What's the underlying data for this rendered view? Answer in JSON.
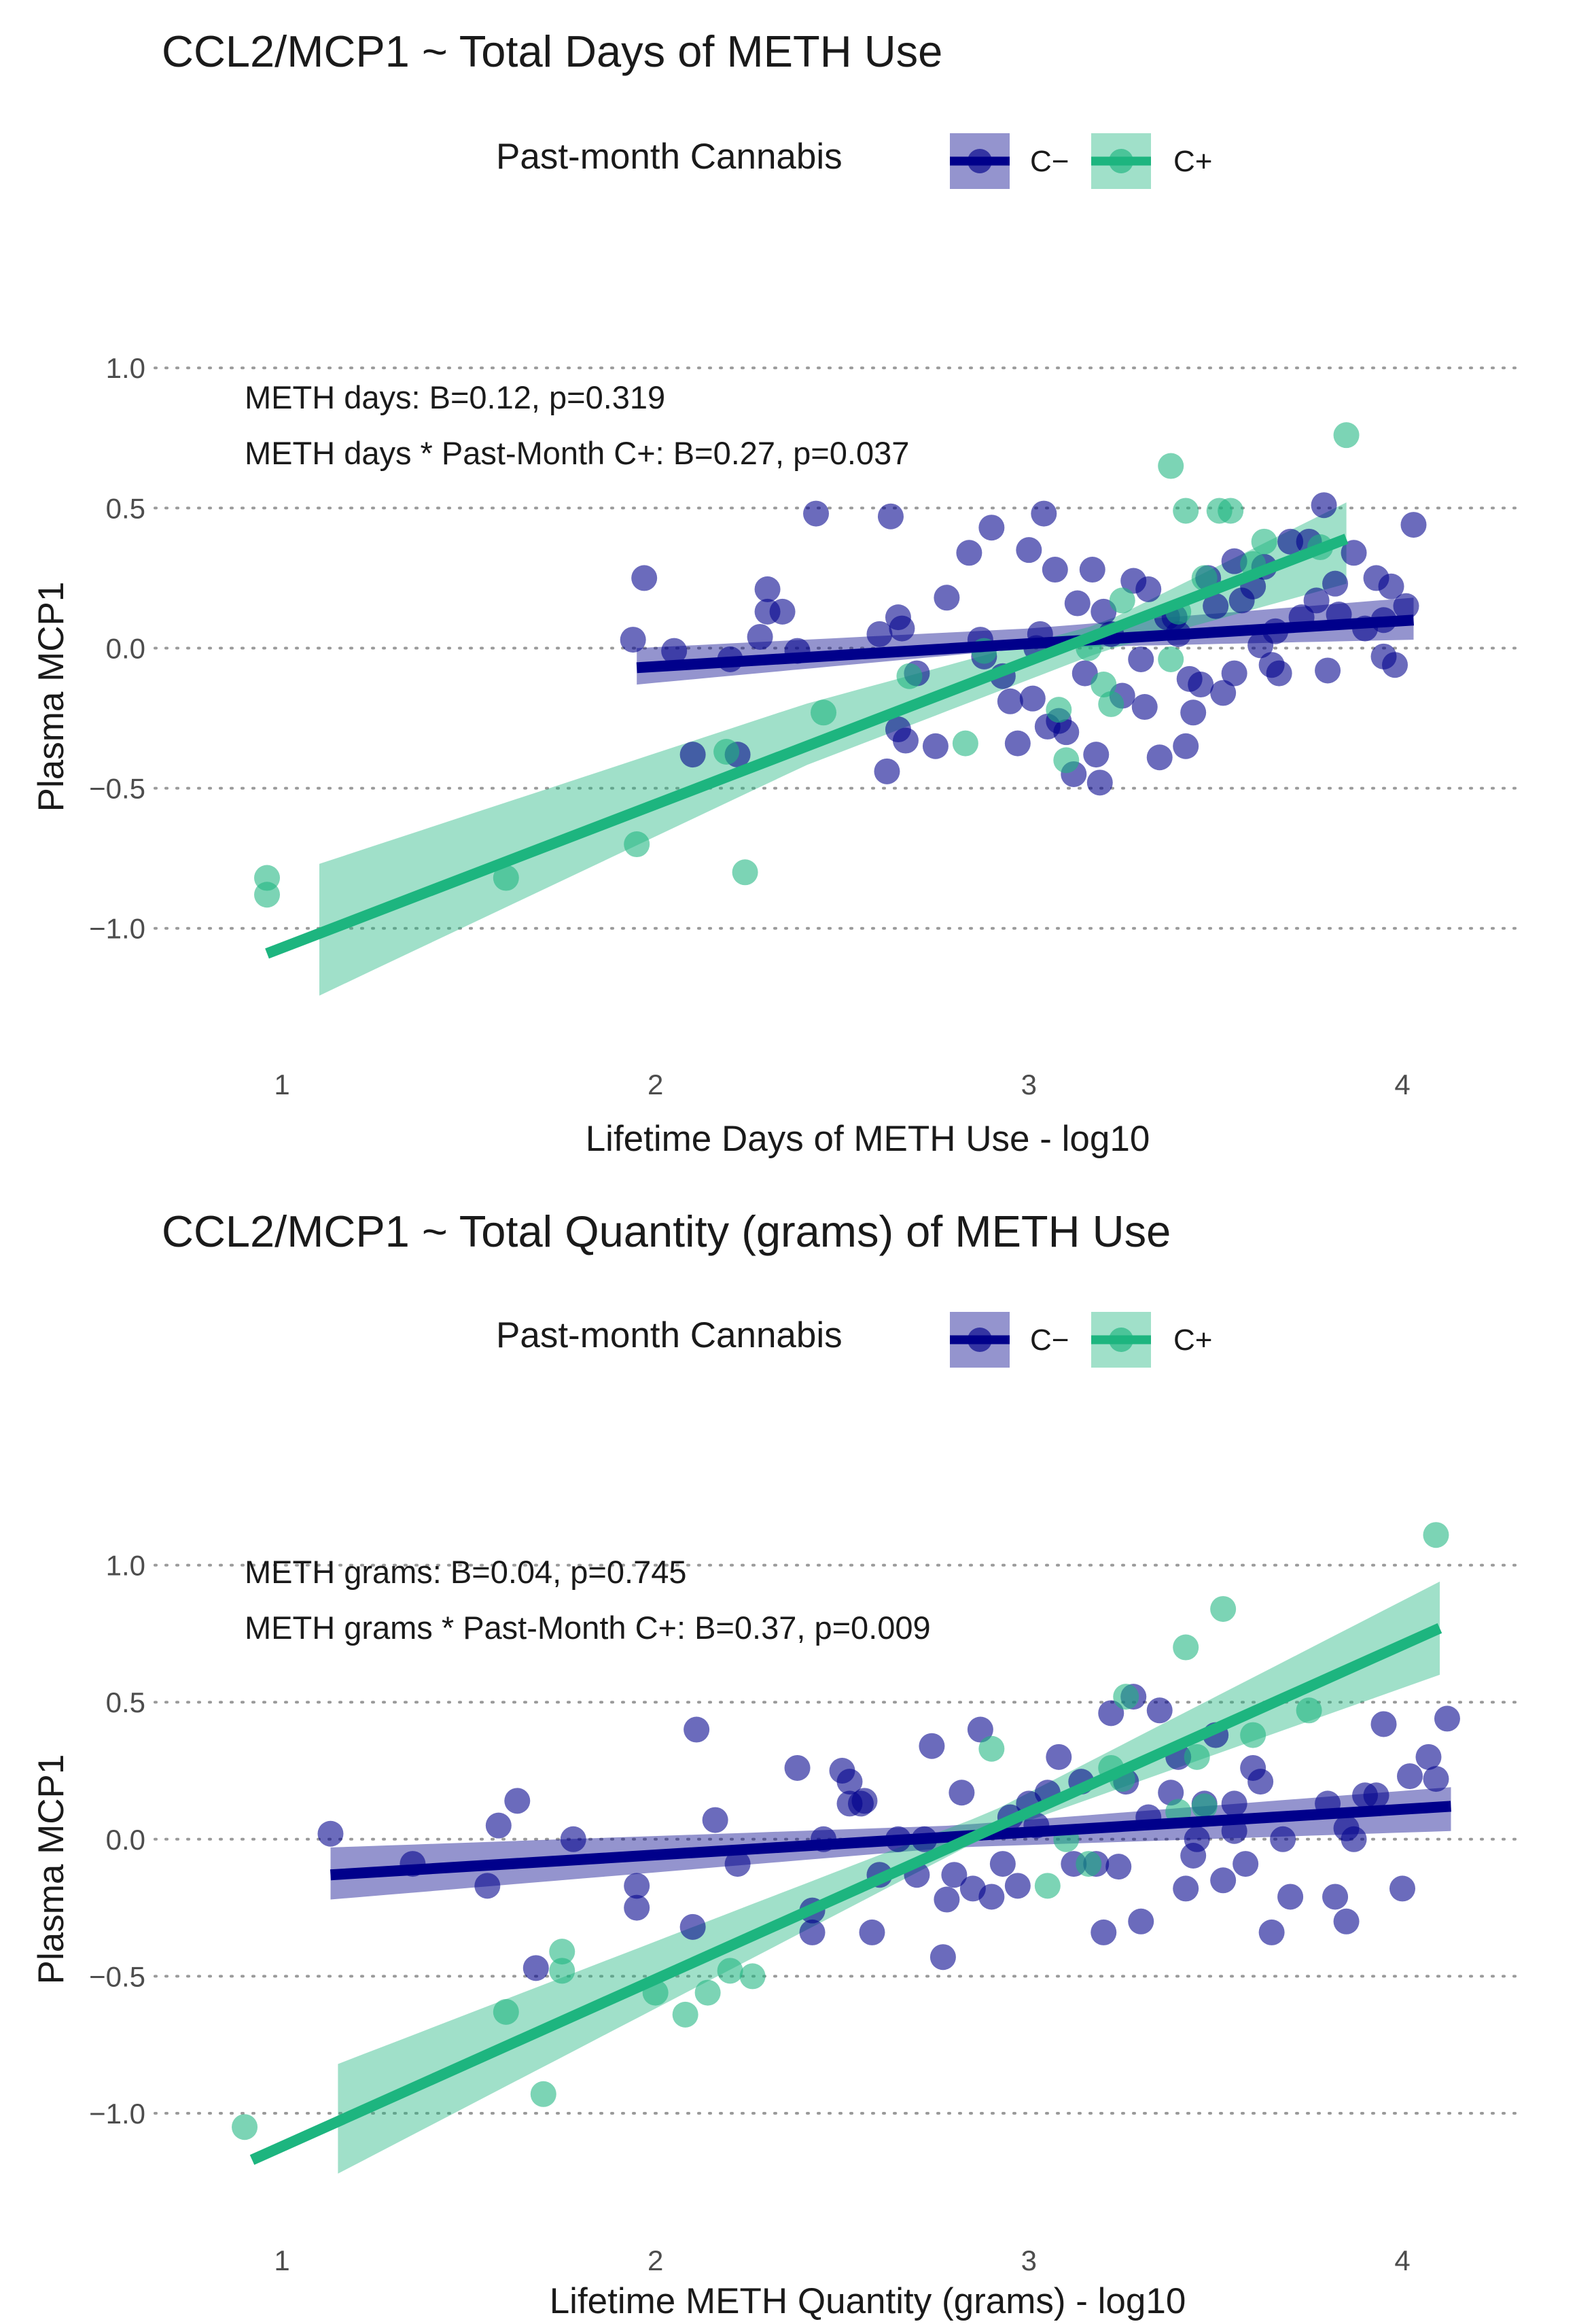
{
  "colors": {
    "c_minus": "#00008b",
    "c_plus": "#1db57f"
  },
  "chart_data": [
    {
      "type": "scatter",
      "title": "CCL2/MCP1 ~ Total Days of METH Use",
      "xlabel": "Lifetime Days of METH Use - log10",
      "ylabel": "Plasma MCP1",
      "xlim": [
        0.8,
        4.25
      ],
      "ylim": [
        -1.35,
        1.1
      ],
      "xticks": [
        1,
        2,
        3,
        4
      ],
      "xtick_labels": [
        "1",
        "2",
        "3",
        "4"
      ],
      "yticks": [
        -1.0,
        -0.5,
        0.0,
        0.5,
        1.0
      ],
      "ytick_labels": [
        "−1.0",
        "−0.5",
        "0.0",
        "0.5",
        "1.0"
      ],
      "grid": "horizontal dotted",
      "legend": {
        "title": "Past-month Cannabis",
        "position": "top",
        "entries": [
          {
            "label": "C−",
            "color": "#00008b"
          },
          {
            "label": "C+",
            "color": "#1db57f"
          }
        ]
      },
      "annotations": [
        "METH days: B=0.12, p=0.319",
        "METH days * Past-Month C+: B=0.27, p=0.037"
      ],
      "series": [
        {
          "name": "C−",
          "color": "#00008b",
          "fit": {
            "x": [
              1.95,
              4.03
            ],
            "y": [
              -0.07,
              0.1
            ]
          },
          "band": {
            "x": [
              1.95,
              3.0,
              4.03
            ],
            "lower": [
              -0.13,
              0.0,
              0.03
            ],
            "upper": [
              0.0,
              0.07,
              0.18
            ]
          },
          "points": [
            [
              1.94,
              0.03
            ],
            [
              1.97,
              0.25
            ],
            [
              2.05,
              -0.01
            ],
            [
              2.1,
              -0.38
            ],
            [
              2.2,
              -0.04
            ],
            [
              2.22,
              -0.38
            ],
            [
              2.28,
              0.04
            ],
            [
              2.3,
              0.21
            ],
            [
              2.3,
              0.13
            ],
            [
              2.34,
              0.13
            ],
            [
              2.38,
              -0.01
            ],
            [
              2.43,
              0.48
            ],
            [
              2.6,
              0.05
            ],
            [
              2.62,
              -0.44
            ],
            [
              2.63,
              0.47
            ],
            [
              2.65,
              0.11
            ],
            [
              2.65,
              -0.29
            ],
            [
              2.66,
              0.07
            ],
            [
              2.67,
              -0.33
            ],
            [
              2.7,
              -0.09
            ],
            [
              2.75,
              -0.35
            ],
            [
              2.78,
              0.18
            ],
            [
              2.84,
              0.34
            ],
            [
              2.87,
              0.03
            ],
            [
              2.88,
              -0.03
            ],
            [
              2.9,
              0.43
            ],
            [
              2.93,
              -0.1
            ],
            [
              2.95,
              -0.19
            ],
            [
              2.97,
              -0.34
            ],
            [
              3.0,
              0.35
            ],
            [
              3.01,
              -0.18
            ],
            [
              3.02,
              0.0
            ],
            [
              3.03,
              0.05
            ],
            [
              3.04,
              0.48
            ],
            [
              3.05,
              -0.28
            ],
            [
              3.07,
              0.28
            ],
            [
              3.08,
              -0.26
            ],
            [
              3.1,
              -0.3
            ],
            [
              3.12,
              -0.45
            ],
            [
              3.13,
              0.16
            ],
            [
              3.15,
              -0.09
            ],
            [
              3.17,
              0.28
            ],
            [
              3.18,
              -0.38
            ],
            [
              3.19,
              -0.48
            ],
            [
              3.2,
              0.13
            ],
            [
              3.22,
              0.05
            ],
            [
              3.25,
              -0.17
            ],
            [
              3.28,
              0.24
            ],
            [
              3.3,
              -0.04
            ],
            [
              3.31,
              -0.21
            ],
            [
              3.32,
              0.21
            ],
            [
              3.35,
              -0.39
            ],
            [
              3.37,
              0.11
            ],
            [
              3.39,
              0.11
            ],
            [
              3.4,
              0.05
            ],
            [
              3.42,
              -0.35
            ],
            [
              3.43,
              -0.11
            ],
            [
              3.44,
              -0.23
            ],
            [
              3.46,
              -0.13
            ],
            [
              3.48,
              0.25
            ],
            [
              3.5,
              0.15
            ],
            [
              3.52,
              -0.16
            ],
            [
              3.55,
              -0.09
            ],
            [
              3.55,
              0.31
            ],
            [
              3.57,
              0.17
            ],
            [
              3.6,
              0.22
            ],
            [
              3.62,
              0.01
            ],
            [
              3.63,
              0.29
            ],
            [
              3.65,
              -0.06
            ],
            [
              3.66,
              0.06
            ],
            [
              3.67,
              -0.09
            ],
            [
              3.7,
              0.38
            ],
            [
              3.73,
              0.11
            ],
            [
              3.75,
              0.38
            ],
            [
              3.77,
              0.17
            ],
            [
              3.79,
              0.51
            ],
            [
              3.8,
              -0.08
            ],
            [
              3.82,
              0.23
            ],
            [
              3.83,
              0.12
            ],
            [
              3.87,
              0.34
            ],
            [
              3.9,
              0.07
            ],
            [
              3.93,
              0.25
            ],
            [
              3.95,
              -0.03
            ],
            [
              3.97,
              0.22
            ],
            [
              3.98,
              -0.06
            ],
            [
              4.01,
              0.15
            ],
            [
              4.03,
              0.44
            ],
            [
              3.95,
              0.1
            ]
          ]
        },
        {
          "name": "C+",
          "color": "#1db57f",
          "fit": {
            "x": [
              0.96,
              3.85
            ],
            "y": [
              -1.09,
              0.39
            ]
          },
          "band": {
            "x": [
              1.1,
              2.4,
              3.2,
              3.85
            ],
            "lower": [
              -1.24,
              -0.42,
              -0.01,
              0.23
            ],
            "upper": [
              -0.77,
              -0.2,
              0.09,
              0.52
            ]
          },
          "points": [
            [
              0.96,
              -0.82
            ],
            [
              0.96,
              -0.88
            ],
            [
              1.6,
              -0.82
            ],
            [
              1.95,
              -0.7
            ],
            [
              2.19,
              -0.37
            ],
            [
              2.24,
              -0.8
            ],
            [
              2.45,
              -0.23
            ],
            [
              2.68,
              -0.1
            ],
            [
              2.83,
              -0.34
            ],
            [
              2.88,
              -0.01
            ],
            [
              3.08,
              -0.22
            ],
            [
              3.1,
              -0.4
            ],
            [
              3.16,
              0.0
            ],
            [
              3.2,
              -0.13
            ],
            [
              3.22,
              -0.2
            ],
            [
              3.25,
              0.17
            ],
            [
              3.38,
              -0.04
            ],
            [
              3.38,
              0.65
            ],
            [
              3.4,
              0.13
            ],
            [
              3.42,
              0.49
            ],
            [
              3.47,
              0.25
            ],
            [
              3.51,
              0.49
            ],
            [
              3.54,
              0.49
            ],
            [
              3.6,
              0.3
            ],
            [
              3.63,
              0.38
            ],
            [
              3.78,
              0.36
            ],
            [
              3.85,
              0.76
            ]
          ]
        }
      ]
    },
    {
      "type": "scatter",
      "title": "CCL2/MCP1 ~ Total Quantity (grams) of METH Use",
      "xlabel": "Lifetime METH Quantity (grams) - log10",
      "ylabel": "Plasma MCP1",
      "xlim": [
        0.8,
        4.25
      ],
      "ylim": [
        -1.3,
        1.18
      ],
      "xticks": [
        1,
        2,
        3,
        4
      ],
      "xtick_labels": [
        "1",
        "2",
        "3",
        "4"
      ],
      "yticks": [
        -1.0,
        -0.5,
        0.0,
        0.5,
        1.0
      ],
      "ytick_labels": [
        "−1.0",
        "−0.5",
        "0.0",
        "0.5",
        "1.0"
      ],
      "grid": "horizontal dotted",
      "legend": {
        "title": "Past-month Cannabis",
        "position": "top",
        "entries": [
          {
            "label": "C−",
            "color": "#00008b"
          },
          {
            "label": "C+",
            "color": "#1db57f"
          }
        ]
      },
      "annotations": [
        "METH grams: B=0.04, p=0.745",
        "METH grams * Past-Month C+: B=0.37, p=0.009"
      ],
      "series": [
        {
          "name": "C−",
          "color": "#00008b",
          "fit": {
            "x": [
              1.13,
              4.13
            ],
            "y": [
              -0.13,
              0.12
            ]
          },
          "band": {
            "x": [
              1.13,
              2.8,
              4.13
            ],
            "lower": [
              -0.22,
              -0.03,
              0.03
            ],
            "upper": [
              -0.03,
              0.05,
              0.19
            ]
          },
          "points": [
            [
              1.13,
              0.02
            ],
            [
              1.35,
              -0.09
            ],
            [
              1.55,
              -0.17
            ],
            [
              1.58,
              0.05
            ],
            [
              1.63,
              0.14
            ],
            [
              1.68,
              -0.47
            ],
            [
              1.78,
              0.0
            ],
            [
              1.95,
              -0.17
            ],
            [
              1.95,
              -0.25
            ],
            [
              2.1,
              -0.32
            ],
            [
              2.11,
              0.4
            ],
            [
              2.16,
              0.07
            ],
            [
              2.22,
              -0.09
            ],
            [
              2.38,
              0.26
            ],
            [
              2.42,
              -0.34
            ],
            [
              2.42,
              -0.26
            ],
            [
              2.45,
              0.0
            ],
            [
              2.5,
              0.25
            ],
            [
              2.52,
              0.13
            ],
            [
              2.52,
              0.21
            ],
            [
              2.55,
              0.13
            ],
            [
              2.56,
              0.14
            ],
            [
              2.58,
              -0.34
            ],
            [
              2.6,
              -0.13
            ],
            [
              2.65,
              0.0
            ],
            [
              2.7,
              -0.13
            ],
            [
              2.72,
              0.0
            ],
            [
              2.74,
              0.34
            ],
            [
              2.77,
              -0.43
            ],
            [
              2.78,
              -0.22
            ],
            [
              2.8,
              -0.13
            ],
            [
              2.82,
              0.17
            ],
            [
              2.85,
              -0.18
            ],
            [
              2.87,
              0.4
            ],
            [
              2.9,
              -0.21
            ],
            [
              2.93,
              -0.09
            ],
            [
              2.95,
              0.08
            ],
            [
              2.97,
              -0.17
            ],
            [
              3.0,
              0.13
            ],
            [
              3.02,
              0.05
            ],
            [
              3.05,
              0.17
            ],
            [
              3.08,
              0.3
            ],
            [
              3.12,
              -0.09
            ],
            [
              3.14,
              0.21
            ],
            [
              3.18,
              -0.09
            ],
            [
              3.2,
              -0.34
            ],
            [
              3.22,
              0.46
            ],
            [
              3.24,
              -0.1
            ],
            [
              3.26,
              0.21
            ],
            [
              3.28,
              0.52
            ],
            [
              3.3,
              -0.3
            ],
            [
              3.32,
              0.08
            ],
            [
              3.35,
              0.47
            ],
            [
              3.38,
              0.17
            ],
            [
              3.4,
              0.3
            ],
            [
              3.42,
              -0.18
            ],
            [
              3.44,
              -0.06
            ],
            [
              3.45,
              0.0
            ],
            [
              3.47,
              0.13
            ],
            [
              3.5,
              0.38
            ],
            [
              3.52,
              -0.15
            ],
            [
              3.55,
              0.13
            ],
            [
              3.58,
              -0.09
            ],
            [
              3.6,
              0.26
            ],
            [
              3.62,
              0.21
            ],
            [
              3.65,
              -0.34
            ],
            [
              3.68,
              0.0
            ],
            [
              3.7,
              -0.21
            ],
            [
              3.8,
              0.13
            ],
            [
              3.82,
              -0.21
            ],
            [
              3.85,
              -0.3
            ],
            [
              3.85,
              0.04
            ],
            [
              3.9,
              0.16
            ],
            [
              3.93,
              0.16
            ],
            [
              3.95,
              0.42
            ],
            [
              4.0,
              -0.18
            ],
            [
              4.02,
              0.23
            ],
            [
              4.07,
              0.3
            ],
            [
              4.09,
              0.22
            ],
            [
              4.12,
              0.44
            ],
            [
              3.87,
              0.0
            ],
            [
              3.55,
              0.03
            ]
          ]
        },
        {
          "name": "C+",
          "color": "#1db57f",
          "fit": {
            "x": [
              0.92,
              4.1
            ],
            "y": [
              -1.17,
              0.77
            ]
          },
          "band": {
            "x": [
              1.15,
              2.9,
              4.1
            ],
            "lower": [
              -1.22,
              0.02,
              0.6
            ],
            "upper": [
              -0.82,
              0.1,
              0.94
            ]
          },
          "points": [
            [
              0.9,
              -1.05
            ],
            [
              1.6,
              -0.63
            ],
            [
              1.7,
              -0.93
            ],
            [
              1.75,
              -0.41
            ],
            [
              1.75,
              -0.48
            ],
            [
              2.0,
              -0.56
            ],
            [
              2.08,
              -0.64
            ],
            [
              2.14,
              -0.56
            ],
            [
              2.2,
              -0.48
            ],
            [
              2.26,
              -0.5
            ],
            [
              2.9,
              0.33
            ],
            [
              3.05,
              -0.17
            ],
            [
              3.1,
              0.0
            ],
            [
              3.16,
              -0.09
            ],
            [
              3.22,
              0.26
            ],
            [
              3.25,
              0.22
            ],
            [
              3.26,
              0.52
            ],
            [
              3.4,
              0.1
            ],
            [
              3.42,
              0.7
            ],
            [
              3.45,
              0.3
            ],
            [
              3.47,
              0.12
            ],
            [
              3.52,
              0.84
            ],
            [
              3.6,
              0.38
            ],
            [
              3.75,
              0.47
            ],
            [
              4.09,
              1.11
            ]
          ]
        }
      ]
    }
  ]
}
